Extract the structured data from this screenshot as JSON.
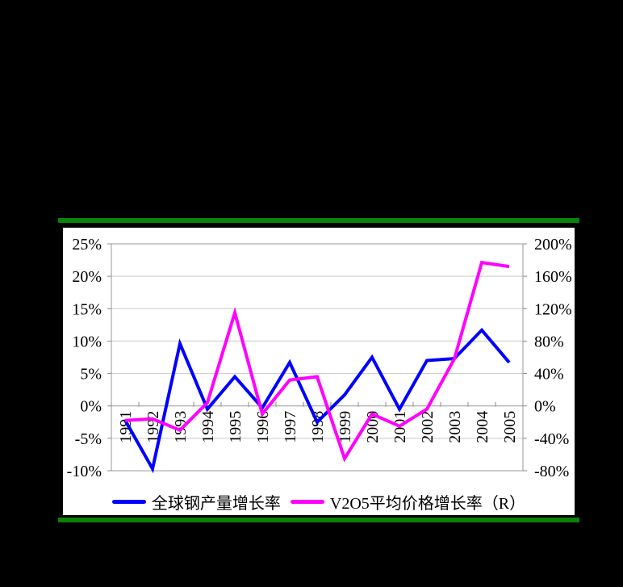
{
  "canvas": {
    "background": "#000000"
  },
  "frame": {
    "separator_color": "#0a820a"
  },
  "panel": {
    "background": "#ffffff"
  },
  "chart_data": {
    "type": "line",
    "categories": [
      "1991",
      "1992",
      "1993",
      "1994",
      "1995",
      "1996",
      "1997",
      "1998",
      "1999",
      "2000",
      "2001",
      "2002",
      "2003",
      "2004",
      "2005"
    ],
    "series": [
      {
        "name": "全球钢产量增长率",
        "axis": "left",
        "color": "#0000ff",
        "values": [
          -2.2,
          -9.7,
          9.6,
          -0.5,
          4.5,
          -0.3,
          6.7,
          -2.5,
          1.7,
          7.5,
          -0.5,
          7.0,
          7.3,
          11.7,
          6.7
        ]
      },
      {
        "name": "V2O5平均价格增长率（R）",
        "axis": "right",
        "color": "#ff00ff",
        "values": [
          -18,
          -16,
          -30,
          4,
          115,
          -10,
          32,
          36,
          -65,
          -10,
          -25,
          -4,
          58,
          177,
          172
        ]
      }
    ],
    "left_axis": {
      "min": -10,
      "max": 25,
      "step": 5,
      "labels": [
        "25%",
        "20%",
        "15%",
        "10%",
        "5%",
        "0%",
        "-5%",
        "-10%"
      ]
    },
    "right_axis": {
      "min": -80,
      "max": 200,
      "step": 40,
      "labels": [
        "200%",
        "160%",
        "120%",
        "80%",
        "40%",
        "0%",
        "-40%",
        "-80%"
      ]
    },
    "grid": true,
    "legend_position": "bottom",
    "styles": {
      "gridline_color": "#c9c9c9",
      "plot_border_color": "#9a9a9a",
      "axis_line_color": "#9a9a9a",
      "tick_color": "#8c8c8c",
      "label_color": "#000000",
      "line_width": 4
    }
  },
  "legend": {
    "items": [
      {
        "label": "全球钢产量增长率",
        "color": "#0000ff"
      },
      {
        "label": "V2O5平均价格增长率（R）",
        "color": "#ff00ff"
      }
    ]
  }
}
